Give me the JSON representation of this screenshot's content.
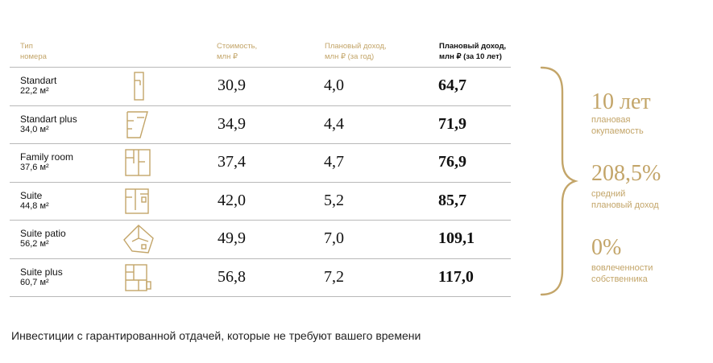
{
  "header": {
    "type": "Тип\nномера",
    "cost": "Стоимость,\nмлн ₽",
    "income_year": "Плановый доход,\nмлн ₽  (за год)",
    "income_10": "Плановый доход,\nмлн ₽ (за 10 лет)"
  },
  "rows": [
    {
      "name": "Standart",
      "area": "22,2 м²",
      "plan_icon": "floor-plan-standart-icon",
      "cost": "30,9",
      "income_year": "4,0",
      "income_10": "64,7"
    },
    {
      "name": "Standart plus",
      "area": "34,0 м²",
      "plan_icon": "floor-plan-standart-plus-icon",
      "cost": "34,9",
      "income_year": "4,4",
      "income_10": "71,9"
    },
    {
      "name": "Family room",
      "area": "37,6 м²",
      "plan_icon": "floor-plan-family-room-icon",
      "cost": "37,4",
      "income_year": "4,7",
      "income_10": "76,9"
    },
    {
      "name": "Suite",
      "area": "44,8 м²",
      "plan_icon": "floor-plan-suite-icon",
      "cost": "42,0",
      "income_year": "5,2",
      "income_10": "85,7"
    },
    {
      "name": "Suite patio",
      "area": "56,2 м²",
      "plan_icon": "floor-plan-suite-patio-icon",
      "cost": "49,9",
      "income_year": "7,0",
      "income_10": "109,1"
    },
    {
      "name": "Suite plus",
      "area": "60,7 м²",
      "plan_icon": "floor-plan-suite-plus-icon",
      "cost": "56,8",
      "income_year": "7,2",
      "income_10": "117,0"
    }
  ],
  "stats": [
    {
      "value": "10 лет",
      "label": "плановая\nокупаемость"
    },
    {
      "value": "208,5%",
      "label": "средний\nплановый доход"
    },
    {
      "value": "0%",
      "label": "вовлеченности\nсобственника"
    }
  ],
  "caption": "Инвестиции с гарантированной отдачей, которые не требуют вашего времени",
  "colors": {
    "accent": "#c3a569",
    "text": "#111111",
    "rule": "#b9b9b9"
  }
}
